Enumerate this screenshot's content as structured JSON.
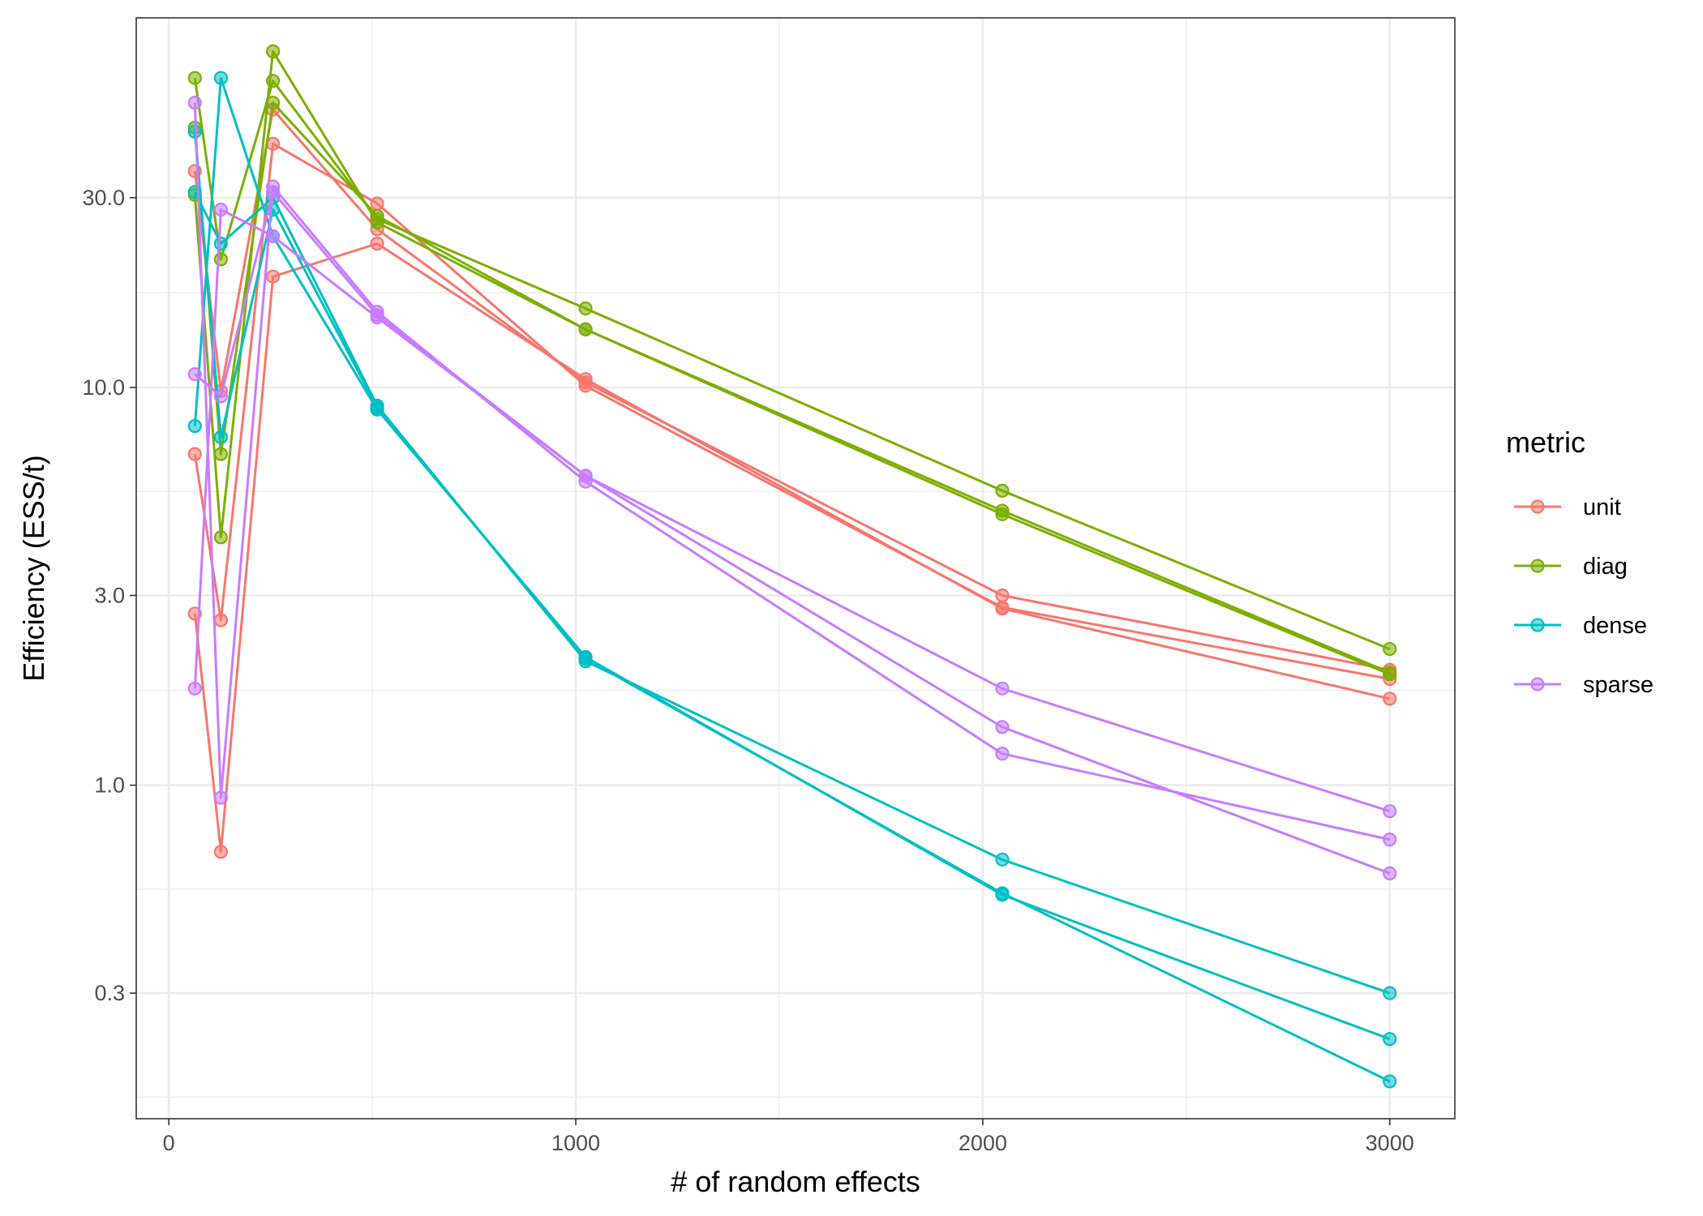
{
  "chart_data": {
    "type": "line",
    "xlabel": "# of random effects",
    "ylabel": "Efficiency (ESS/t)",
    "xlim": [
      -80,
      3160
    ],
    "ylim": [
      0.145,
      85
    ],
    "y_scale": "log",
    "grid": true,
    "x_ticks": [
      0,
      1000,
      2000,
      3000
    ],
    "x_tick_labels": [
      "0",
      "1000",
      "2000",
      "3000"
    ],
    "y_ticks": [
      0.3,
      1.0,
      3.0,
      10.0,
      30.0
    ],
    "y_tick_labels": [
      "0.3",
      "1.0",
      "3.0",
      "10.0",
      "30.0"
    ],
    "legend": {
      "title": "metric",
      "position": "right"
    },
    "series": [
      {
        "name": "unit",
        "color": "#F8766D",
        "lines": [
          {
            "x": [
              64,
              128,
              256,
              512,
              1024,
              2048,
              3000
            ],
            "y": [
              6.8,
              2.6,
              41,
              29,
              10.1,
              2.8,
              1.85
            ]
          },
          {
            "x": [
              64,
              128,
              256,
              512,
              1024,
              2048,
              3000
            ],
            "y": [
              2.7,
              0.68,
              19,
              23,
              10.5,
              2.78,
              1.65
            ]
          },
          {
            "x": [
              64,
              128,
              256,
              512,
              1024,
              2048,
              3000
            ],
            "y": [
              35,
              9.8,
              50,
              25,
              10.3,
              3.0,
              1.95
            ]
          }
        ]
      },
      {
        "name": "diag",
        "color": "#7CAE00",
        "lines": [
          {
            "x": [
              64,
              128,
              256,
              512,
              1024,
              2048,
              3000
            ],
            "y": [
              60,
              21,
              59,
              26.5,
              15.8,
              5.5,
              2.2
            ]
          },
          {
            "x": [
              64,
              128,
              256,
              512,
              1024,
              2048,
              3000
            ],
            "y": [
              30.5,
              4.2,
              70,
              26,
              14,
              4.8,
              1.9
            ]
          },
          {
            "x": [
              64,
              128,
              256,
              512,
              1024,
              2048,
              3000
            ],
            "y": [
              45,
              6.8,
              52,
              27,
              14,
              4.9,
              1.92
            ]
          }
        ]
      },
      {
        "name": "dense",
        "color": "#00BFC4",
        "lines": [
          {
            "x": [
              64,
              128,
              256,
              512,
              1024,
              2048,
              3000
            ],
            "y": [
              31,
              23,
              30,
              9.0,
              2.05,
              0.65,
              0.3
            ]
          },
          {
            "x": [
              64,
              128,
              256,
              512,
              1024,
              2048,
              3000
            ],
            "y": [
              8.0,
              60,
              24,
              8.8,
              2.1,
              0.53,
              0.23
            ]
          },
          {
            "x": [
              64,
              128,
              256,
              512,
              1024,
              2048,
              3000
            ],
            "y": [
              44,
              7.5,
              28,
              8.9,
              2.08,
              0.535,
              0.18
            ]
          }
        ]
      },
      {
        "name": "sparse",
        "color": "#C77CFF",
        "lines": [
          {
            "x": [
              64,
              128,
              256,
              512,
              1024,
              2048,
              3000
            ],
            "y": [
              52,
              0.93,
              32,
              15.5,
              5.8,
              1.2,
              0.73
            ]
          },
          {
            "x": [
              64,
              128,
              256,
              512,
              1024,
              2048,
              3000
            ],
            "y": [
              1.75,
              28,
              24,
              15,
              6.0,
              1.4,
              0.6
            ]
          },
          {
            "x": [
              64,
              128,
              256,
              512,
              1024,
              2048,
              3000
            ],
            "y": [
              10.8,
              9.5,
              31,
              15.2,
              6.0,
              1.75,
              0.86
            ]
          }
        ]
      }
    ]
  }
}
